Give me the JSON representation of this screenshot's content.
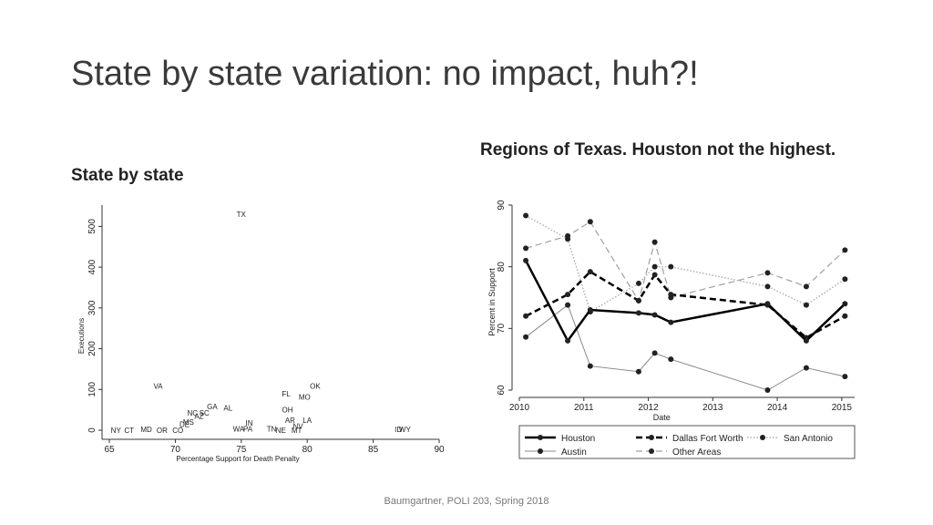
{
  "slide": {
    "title": "State by state variation: no impact, huh?!",
    "left_subtitle": "State by state",
    "right_subtitle": "Regions of Texas. Houston not the highest.",
    "footer": "Baumgartner, POLI 203, Spring 2018"
  },
  "chart_data": [
    {
      "type": "scatter",
      "xlabel": "Percentage Support for Death Penalty",
      "ylabel": "Executions",
      "xlim": [
        65,
        90
      ],
      "ylim": [
        0,
        530
      ],
      "xticks": [
        65,
        70,
        75,
        80,
        85,
        90
      ],
      "yticks": [
        0,
        100,
        200,
        300,
        400,
        500
      ],
      "points": [
        {
          "label": "TX",
          "x": 75.0,
          "y": 530
        },
        {
          "label": "VA",
          "x": 68.7,
          "y": 108
        },
        {
          "label": "OK",
          "x": 80.6,
          "y": 108
        },
        {
          "label": "FL",
          "x": 78.4,
          "y": 90
        },
        {
          "label": "MO",
          "x": 79.8,
          "y": 82
        },
        {
          "label": "GA",
          "x": 72.8,
          "y": 58
        },
        {
          "label": "AL",
          "x": 74.0,
          "y": 55
        },
        {
          "label": "OH",
          "x": 78.5,
          "y": 50
        },
        {
          "label": "NC",
          "x": 71.3,
          "y": 42
        },
        {
          "label": "SC",
          "x": 72.2,
          "y": 42
        },
        {
          "label": "AZ",
          "x": 71.8,
          "y": 35
        },
        {
          "label": "AR",
          "x": 78.7,
          "y": 25
        },
        {
          "label": "LA",
          "x": 80.0,
          "y": 25
        },
        {
          "label": "IN",
          "x": 75.6,
          "y": 18
        },
        {
          "label": "MS",
          "x": 71.0,
          "y": 20
        },
        {
          "label": "DE",
          "x": 70.7,
          "y": 15
        },
        {
          "label": "NV",
          "x": 79.3,
          "y": 10
        },
        {
          "label": "NY",
          "x": 65.5,
          "y": 0
        },
        {
          "label": "CT",
          "x": 66.5,
          "y": 0
        },
        {
          "label": "MD",
          "x": 67.8,
          "y": 2
        },
        {
          "label": "OR",
          "x": 69.0,
          "y": 0
        },
        {
          "label": "CO",
          "x": 70.2,
          "y": 0
        },
        {
          "label": "WA",
          "x": 74.8,
          "y": 3
        },
        {
          "label": "PA",
          "x": 75.5,
          "y": 3
        },
        {
          "label": "TN",
          "x": 77.3,
          "y": 3
        },
        {
          "label": "NE",
          "x": 78.0,
          "y": 0
        },
        {
          "label": "MT",
          "x": 79.2,
          "y": 0
        },
        {
          "label": "ID",
          "x": 86.9,
          "y": 2
        },
        {
          "label": "WY",
          "x": 87.4,
          "y": 2
        }
      ]
    },
    {
      "type": "line",
      "xlabel": "Date",
      "ylabel": "Percent in Support",
      "xlim": [
        2010,
        2015.2
      ],
      "ylim": [
        60,
        90
      ],
      "xticks": [
        2010,
        2011,
        2012,
        2013,
        2014,
        2015
      ],
      "yticks": [
        60,
        70,
        80,
        90
      ],
      "series": [
        {
          "name": "Houston",
          "style": "solid-thick",
          "color": "#000000",
          "x": [
            2010.1,
            2010.75,
            2011.1,
            2011.85,
            2012.1,
            2012.35,
            2013.85,
            2014.45,
            2015.05
          ],
          "y": [
            81,
            68,
            73,
            72.5,
            72.2,
            71,
            74,
            68,
            74
          ]
        },
        {
          "name": "Dallas Fort Worth",
          "style": "dashed-thick",
          "color": "#000000",
          "x": [
            2010.1,
            2010.75,
            2011.1,
            2011.85,
            2012.1,
            2012.35,
            2013.85,
            2014.45,
            2015.05
          ],
          "y": [
            72,
            75.5,
            79.2,
            74.5,
            78.7,
            75.5,
            73.8,
            68.5,
            72
          ]
        },
        {
          "name": "San Antonio",
          "style": "dotted",
          "color": "#b0b0b0",
          "x": [
            2010.1,
            2010.75,
            2011.1,
            2011.85,
            2012.1,
            2012.35,
            2013.85,
            2014.45,
            2015.05
          ],
          "y": [
            88.3,
            84.5,
            72.7,
            77.3,
            80,
            80,
            76.8,
            73.8,
            78
          ]
        },
        {
          "name": "Austin",
          "style": "solid-thin",
          "color": "#888888",
          "x": [
            2010.1,
            2010.75,
            2011.1,
            2011.85,
            2012.1,
            2012.35,
            2013.85,
            2014.45,
            2015.05
          ],
          "y": [
            68.6,
            73.8,
            63.9,
            63,
            66,
            65,
            60,
            63.6,
            62.2
          ]
        },
        {
          "name": "Other Areas",
          "style": "dashed-thin",
          "color": "#a0a0a0",
          "x": [
            2010.1,
            2010.75,
            2011.1,
            2011.85,
            2012.1,
            2012.35,
            2013.85,
            2014.45,
            2015.05
          ],
          "y": [
            83,
            85,
            87.3,
            74.5,
            84,
            75,
            79,
            76.8,
            82.7
          ]
        }
      ]
    }
  ]
}
